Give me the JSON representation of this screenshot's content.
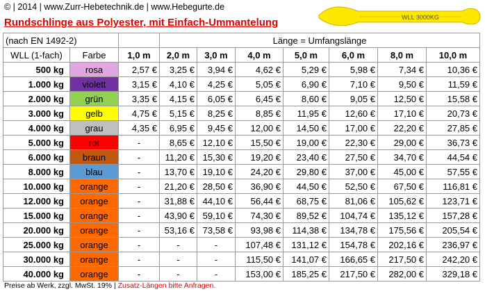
{
  "header": {
    "line": "© | 2014 | www.Zurr-Hebetechnik.de | www.Hebegurte.de",
    "title": "Rundschlinge aus Polyester,  mit Einfach-Ummantelung",
    "image_label": "WLL 3000KG"
  },
  "table": {
    "norm": "(nach EN 1492-2)",
    "span_header": "Länge = Umfangslänge",
    "columns": [
      "WLL (1-fach)",
      "Farbe",
      "1,0 m",
      "2,0 m",
      "3,0 m",
      "4,0 m",
      "5,0 m",
      "6,0 m",
      "8,0 m",
      "10,0 m"
    ],
    "rows": [
      [
        "500 kg",
        "rosa",
        "2,57 €",
        "3,25 €",
        "3,94 €",
        "4,62 €",
        "5,29 €",
        "5,98 €",
        "7,34 €",
        "10,36 €"
      ],
      [
        "1.000 kg",
        "violett",
        "3,15 €",
        "4,10 €",
        "4,25 €",
        "5,05 €",
        "6,90 €",
        "7,10 €",
        "9,50 €",
        "11,59 €"
      ],
      [
        "2.000 kg",
        "grün",
        "3,35 €",
        "4,15 €",
        "6,05 €",
        "6,45 €",
        "8,60 €",
        "9,05 €",
        "12,50 €",
        "15,58 €"
      ],
      [
        "3.000 kg",
        "gelb",
        "4,75 €",
        "5,15 €",
        "8,25 €",
        "8,85 €",
        "11,95 €",
        "12,60 €",
        "17,10 €",
        "20,73 €"
      ],
      [
        "4.000 kg",
        "grau",
        "4,35 €",
        "6,95 €",
        "9,45 €",
        "12,00 €",
        "14,50 €",
        "17,00 €",
        "22,20 €",
        "27,85 €"
      ],
      [
        "5.000 kg",
        "rot",
        "-",
        "8,65 €",
        "12,10 €",
        "15,50 €",
        "19,00 €",
        "22,30 €",
        "29,00 €",
        "36,73 €"
      ],
      [
        "6.000 kg",
        "braun",
        "-",
        "11,20 €",
        "15,30 €",
        "19,20 €",
        "23,40 €",
        "27,50 €",
        "34,70 €",
        "44,54 €"
      ],
      [
        "8.000 kg",
        "blau",
        "-",
        "13,70 €",
        "19,10 €",
        "24,20 €",
        "29,80 €",
        "37,00 €",
        "45,00 €",
        "57,55 €"
      ],
      [
        "10.000 kg",
        "orange",
        "-",
        "21,20 €",
        "28,50 €",
        "36,90 €",
        "44,50 €",
        "52,50 €",
        "67,50 €",
        "116,81 €"
      ],
      [
        "12.000 kg",
        "orange",
        "-",
        "31,88 €",
        "44,10 €",
        "56,44 €",
        "68,75 €",
        "81,06 €",
        "105,62 €",
        "123,71 €"
      ],
      [
        "15.000 kg",
        "orange",
        "-",
        "43,90 €",
        "59,10 €",
        "74,30 €",
        "89,52 €",
        "104,74 €",
        "135,12 €",
        "157,28 €"
      ],
      [
        "20.000 kg",
        "orange",
        "-",
        "53,16 €",
        "73,58 €",
        "93,98 €",
        "114,38 €",
        "134,78 €",
        "175,56 €",
        "205,54 €"
      ],
      [
        "25.000 kg",
        "orange",
        "-",
        "-",
        "-",
        "107,48 €",
        "131,12 €",
        "154,78 €",
        "202,16 €",
        "236,97 €"
      ],
      [
        "30.000 kg",
        "orange",
        "-",
        "-",
        "-",
        "115,50 €",
        "141,07 €",
        "166,65 €",
        "217,50 €",
        "242,20 €"
      ],
      [
        "40.000 kg",
        "orange",
        "-",
        "-",
        "-",
        "153,00 €",
        "185,25 €",
        "217,50 €",
        "282,00 €",
        "329,18 €"
      ]
    ],
    "swatch_colors": [
      "#dfa6e0",
      "#7030a0",
      "#92d050",
      "#ffff00",
      "#bfbfbf",
      "#ff0000",
      "#c0580f",
      "#5b9bd5",
      "#ff6a00",
      "#ff6a00",
      "#ff6a00",
      "#ff6a00",
      "#ff6a00",
      "#ff6a00",
      "#ff6a00"
    ]
  },
  "footer": {
    "note": "Preise ab Werk, zzgl. MwSt. 19% | ",
    "extra": "Zusatz-Längen bitte Anfragen."
  }
}
